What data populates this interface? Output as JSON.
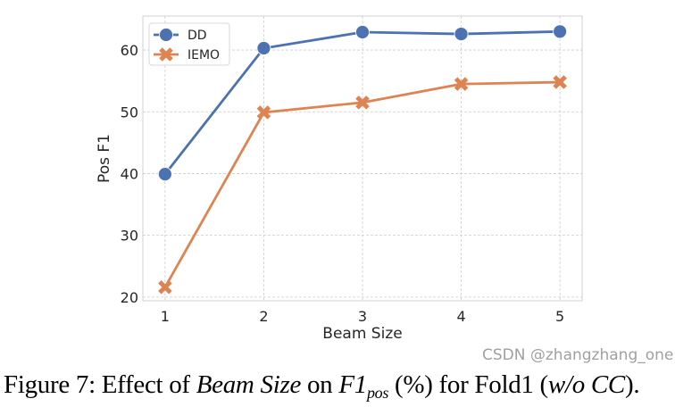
{
  "chart_data": {
    "type": "line",
    "title": "",
    "xlabel": "Beam Size",
    "ylabel": "Pos F1",
    "x": [
      1,
      2,
      3,
      4,
      5
    ],
    "xticks": [
      "1",
      "2",
      "3",
      "4",
      "5"
    ],
    "yticks": [
      20,
      30,
      40,
      50,
      60
    ],
    "xlim": [
      0.775,
      5.225
    ],
    "ylim": [
      19.4,
      65.5
    ],
    "grid": true,
    "legend_position": "top-left",
    "series": [
      {
        "name": "DD",
        "values": [
          39.9,
          60.3,
          62.9,
          62.6,
          63.0
        ],
        "color": "#4c72b0",
        "marker": "circle"
      },
      {
        "name": "IEMO",
        "values": [
          21.6,
          49.9,
          51.5,
          54.5,
          54.8
        ],
        "color": "#dd8452",
        "marker": "x"
      }
    ]
  },
  "caption": {
    "prefix": "Figure 7: Effect of ",
    "italic1": "Beam Size",
    "mid": " on ",
    "f1": "F1",
    "sub": "pos",
    "suffix1": " (%) for Fold1 (",
    "italic2": "w/o CC",
    "suffix2": ")."
  },
  "watermark": "CSDN @zhangzhang_one"
}
